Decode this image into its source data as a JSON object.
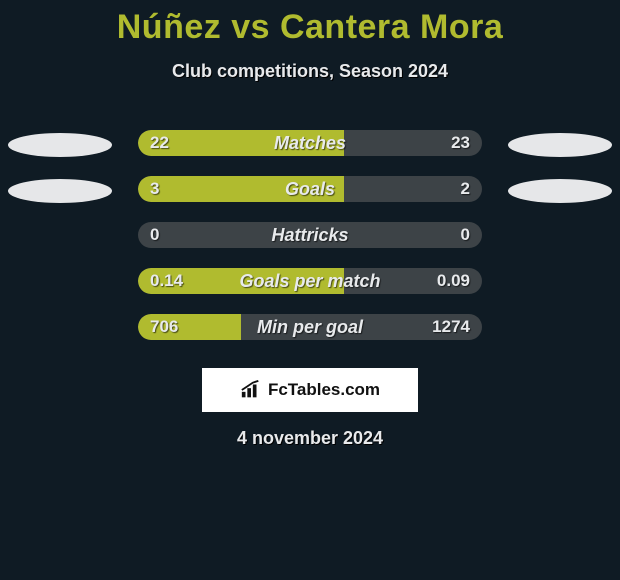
{
  "title": "Núñez vs Cantera Mora",
  "subtitle": "Club competitions, Season 2024",
  "date": "4 november 2024",
  "brand": {
    "label": "FcTables.com"
  },
  "colors": {
    "accent": "#b0bb2f",
    "track": "#3d4347",
    "background": "#0f1b24",
    "text": "#e8eaec",
    "oval": "#e6e7e9"
  },
  "bar": {
    "track_width": 344,
    "track_height": 26,
    "border_radius": 16
  },
  "oval_rows": [
    0,
    1
  ],
  "stats": [
    {
      "label": "Matches",
      "left_value": "22",
      "right_value": "23",
      "left_fill_pct": 60,
      "right_fill_pct": 0,
      "left_color": "#b0bb2f",
      "right_color": "#b0bb2f"
    },
    {
      "label": "Goals",
      "left_value": "3",
      "right_value": "2",
      "left_fill_pct": 60,
      "right_fill_pct": 0,
      "left_color": "#b0bb2f",
      "right_color": "#b0bb2f"
    },
    {
      "label": "Hattricks",
      "left_value": "0",
      "right_value": "0",
      "left_fill_pct": 0,
      "right_fill_pct": 0,
      "left_color": "#b0bb2f",
      "right_color": "#b0bb2f"
    },
    {
      "label": "Goals per match",
      "left_value": "0.14",
      "right_value": "0.09",
      "left_fill_pct": 60,
      "right_fill_pct": 0,
      "left_color": "#b0bb2f",
      "right_color": "#b0bb2f"
    },
    {
      "label": "Min per goal",
      "left_value": "706",
      "right_value": "1274",
      "left_fill_pct": 30,
      "right_fill_pct": 0,
      "left_color": "#b0bb2f",
      "right_color": "#b0bb2f"
    }
  ]
}
